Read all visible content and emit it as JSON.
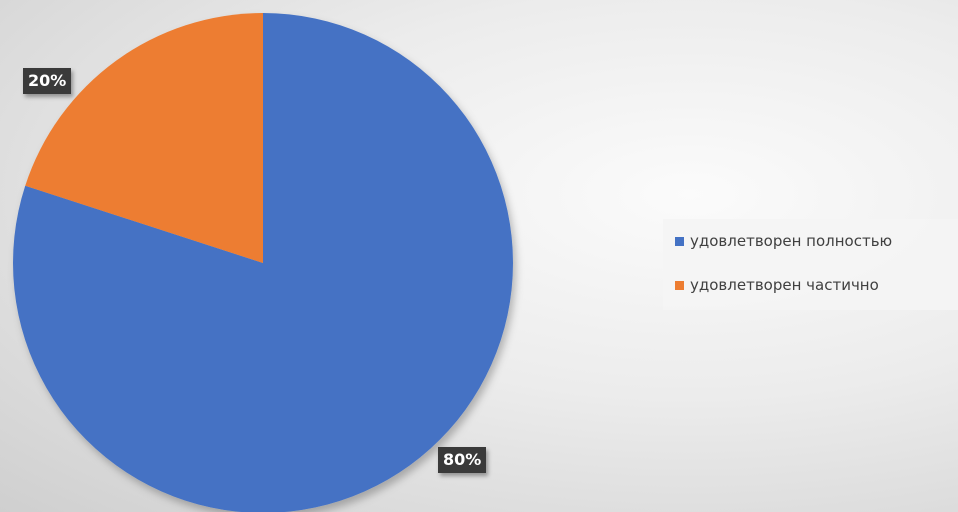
{
  "chart_data": {
    "type": "pie",
    "categories": [
      "удовлетворен полностью",
      "удовлетворен частично"
    ],
    "values": [
      80,
      20
    ],
    "data_labels": [
      "80%",
      "20%"
    ],
    "colors": [
      "#4472C4",
      "#ED7D31"
    ],
    "start_angle": "12 o'clock",
    "direction": "clockwise",
    "legend": "right"
  }
}
